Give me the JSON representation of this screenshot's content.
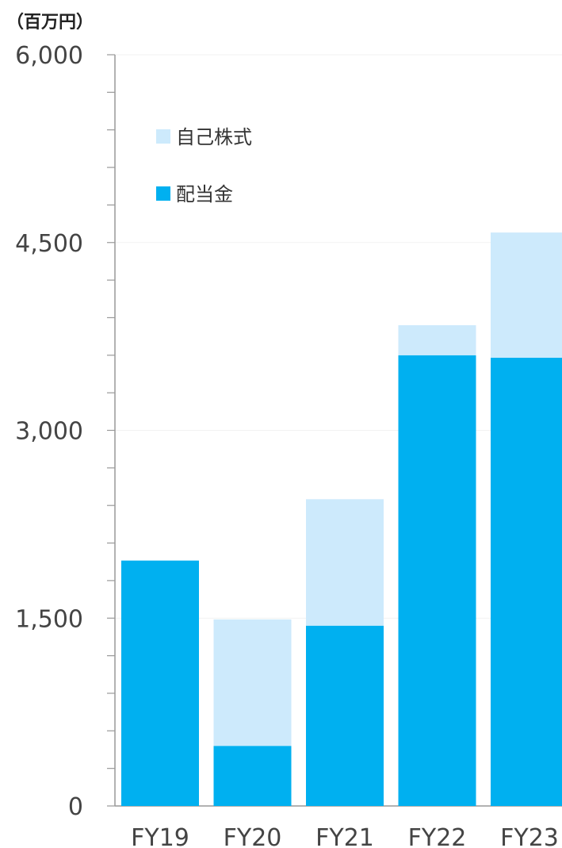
{
  "unit_label": "（百万円）",
  "colors": {
    "dividends": "#00b0f0",
    "treasury_stock": "#cdeafc",
    "axis": "#999999",
    "grid": "#f2f2f2"
  },
  "chart_data": {
    "type": "bar",
    "stacked": true,
    "categories": [
      "FY19",
      "FY20",
      "FY21",
      "FY22",
      "FY23"
    ],
    "series": [
      {
        "name": "配当金",
        "values": [
          1960,
          480,
          1440,
          3600,
          3580
        ]
      },
      {
        "name": "自己株式",
        "values": [
          0,
          1010,
          1010,
          240,
          1000
        ]
      }
    ],
    "y_ticks": [
      "0",
      "1,500",
      "3,000",
      "4,500",
      "6,000"
    ],
    "ylim": [
      0,
      6000
    ],
    "legend": {
      "placement": "top-left",
      "order": [
        "自己株式",
        "配当金"
      ]
    },
    "grid": true
  }
}
